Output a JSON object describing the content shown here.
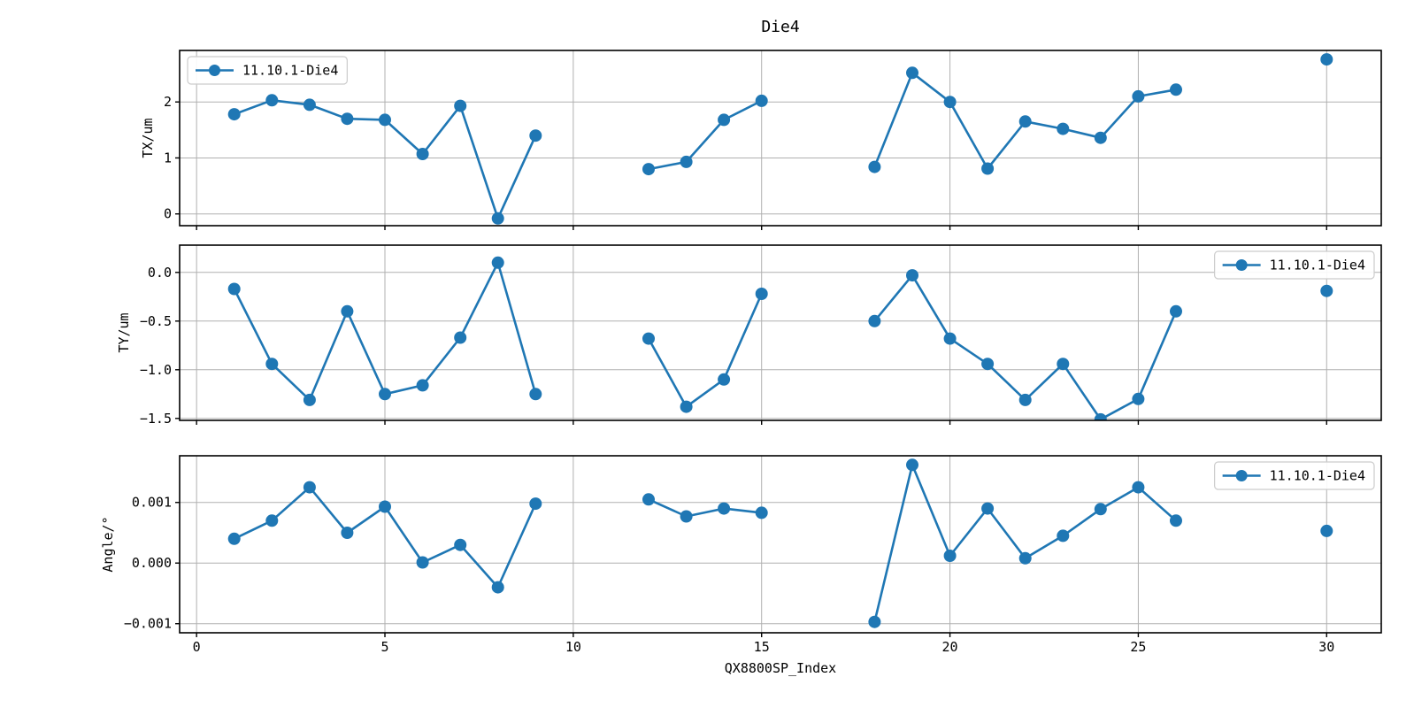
{
  "figure": {
    "title": "Die4",
    "xlabel": "QX8800SP_Index",
    "series_name": "11.10.1-Die4",
    "colors": {
      "series": "#1f77b4",
      "grid": "#b0b0b0",
      "spine": "#000000",
      "legend_border": "#cccccc",
      "background": "#ffffff"
    }
  },
  "x_axis": {
    "label": "QX8800SP_Index",
    "xlim": [
      -0.45,
      31.45
    ],
    "xticks": [
      0,
      5,
      10,
      15,
      20,
      25,
      30
    ],
    "xtick_labels": [
      "0",
      "5",
      "10",
      "15",
      "20",
      "25",
      "30"
    ]
  },
  "chart_data": [
    {
      "type": "line",
      "title": "Die4",
      "ylabel": "TX/um",
      "ylim": [
        -0.21,
        2.92
      ],
      "yticks": [
        0,
        1,
        2
      ],
      "ytick_labels": [
        "0",
        "1",
        "2"
      ],
      "grid": true,
      "legend": {
        "label": "11.10.1-Die4",
        "loc": "upper-left"
      },
      "series": [
        {
          "name": "11.10.1-Die4",
          "color": "#1f77b4",
          "segments": [
            {
              "x": [
                1,
                2,
                3,
                4,
                5,
                6,
                7,
                8,
                9
              ],
              "y": [
                1.78,
                2.03,
                1.95,
                1.7,
                1.68,
                1.07,
                1.93,
                -0.08,
                1.4
              ]
            },
            {
              "x": [
                12,
                13,
                14,
                15
              ],
              "y": [
                0.8,
                0.93,
                1.68,
                2.02
              ]
            },
            {
              "x": [
                18,
                19,
                20,
                21,
                22,
                23,
                24,
                25,
                26
              ],
              "y": [
                0.84,
                2.52,
                2.0,
                0.81,
                1.65,
                1.52,
                1.36,
                2.1,
                2.22
              ]
            },
            {
              "x": [
                30
              ],
              "y": [
                2.76
              ]
            }
          ]
        }
      ],
      "show_xtick_labels": false
    },
    {
      "type": "line",
      "title": "",
      "ylabel": "TY/um",
      "ylim": [
        -1.52,
        0.28
      ],
      "yticks": [
        0.0,
        -0.5,
        -1.0,
        -1.5
      ],
      "ytick_labels": [
        "0.0",
        "−0.5",
        "−1.0",
        "−1.5"
      ],
      "grid": true,
      "legend": {
        "label": "11.10.1-Die4",
        "loc": "upper-right"
      },
      "series": [
        {
          "name": "11.10.1-Die4",
          "color": "#1f77b4",
          "segments": [
            {
              "x": [
                1,
                2,
                3,
                4,
                5,
                6,
                7,
                8,
                9
              ],
              "y": [
                -0.17,
                -0.94,
                -1.31,
                -0.4,
                -1.25,
                -1.16,
                -0.67,
                0.1,
                -1.25
              ]
            },
            {
              "x": [
                12,
                13,
                14,
                15
              ],
              "y": [
                -0.68,
                -1.38,
                -1.1,
                -0.22
              ]
            },
            {
              "x": [
                18,
                19,
                20,
                21,
                22,
                23,
                24,
                25,
                26
              ],
              "y": [
                -0.5,
                -0.03,
                -0.68,
                -0.94,
                -1.31,
                -0.94,
                -1.51,
                -1.3,
                -0.4
              ]
            },
            {
              "x": [
                30
              ],
              "y": [
                -0.19
              ]
            }
          ]
        }
      ],
      "show_xtick_labels": false
    },
    {
      "type": "line",
      "title": "",
      "ylabel": "Angle/°",
      "ylim": [
        -0.00115,
        0.00177
      ],
      "yticks": [
        0.001,
        0.0,
        -0.001
      ],
      "ytick_labels": [
        "0.001",
        "0.000",
        "−0.001"
      ],
      "grid": true,
      "legend": {
        "label": "11.10.1-Die4",
        "loc": "upper-right"
      },
      "series": [
        {
          "name": "11.10.1-Die4",
          "color": "#1f77b4",
          "segments": [
            {
              "x": [
                1,
                2,
                3,
                4,
                5,
                6,
                7,
                8,
                9
              ],
              "y": [
                0.0004,
                0.0007,
                0.00125,
                0.0005,
                0.00093,
                1e-05,
                0.0003,
                -0.0004,
                0.00098
              ]
            },
            {
              "x": [
                12,
                13,
                14,
                15
              ],
              "y": [
                0.00105,
                0.00077,
                0.0009,
                0.00083
              ]
            },
            {
              "x": [
                18,
                19,
                20,
                21,
                22,
                23,
                24,
                25,
                26
              ],
              "y": [
                -0.00097,
                0.00162,
                0.00012,
                0.0009,
                8e-05,
                0.00045,
                0.00089,
                0.00125,
                0.0007
              ]
            },
            {
              "x": [
                30
              ],
              "y": [
                0.00053
              ]
            }
          ]
        }
      ],
      "show_xtick_labels": true
    }
  ]
}
